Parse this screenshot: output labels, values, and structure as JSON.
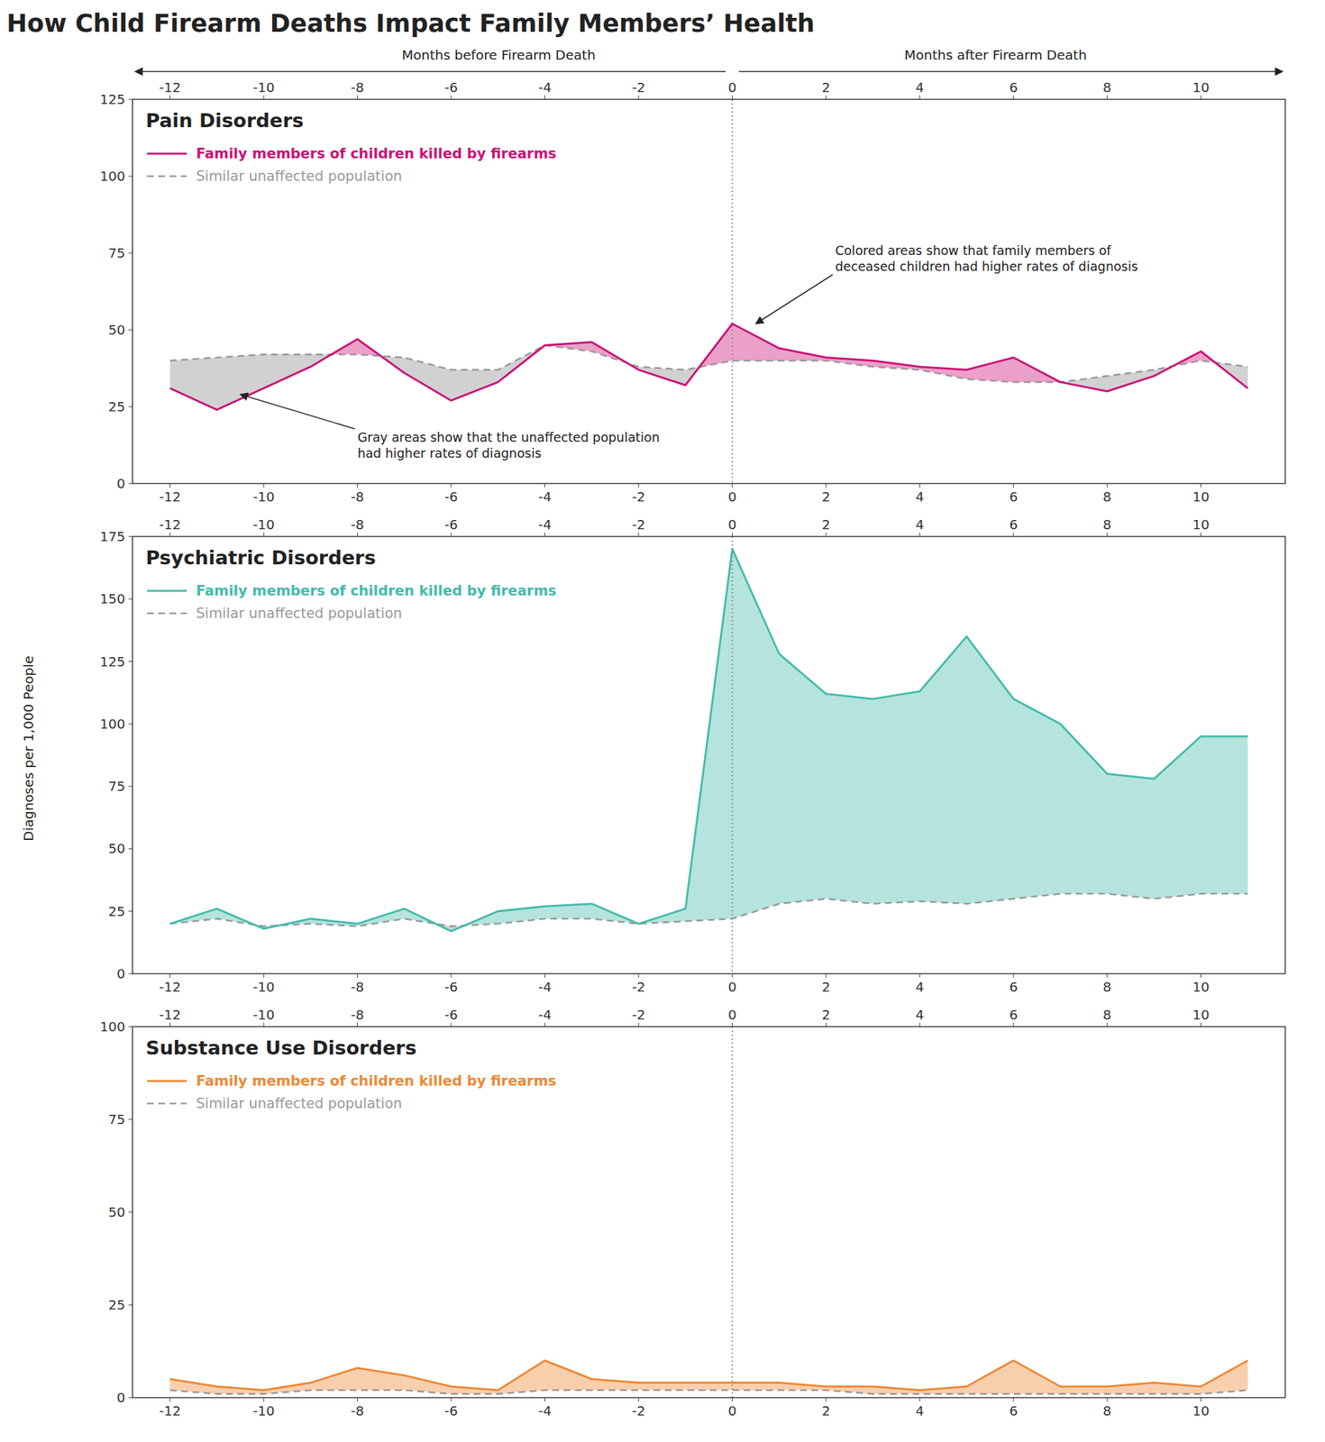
{
  "title": "How Child Firearm Deaths Impact Family Members’ Health",
  "y_label": "Diagnoses per 1,000 People",
  "x_label_before": "Months before Firearm Death",
  "x_label_after": "Months after Firearm Death",
  "chart_data": [
    {
      "type": "line",
      "title": "Pain Disorders",
      "x": [
        -12,
        -11,
        -10,
        -9,
        -8,
        -7,
        -6,
        -5,
        -4,
        -3,
        -2,
        -1,
        0,
        1,
        2,
        3,
        4,
        5,
        6,
        7,
        8,
        9,
        10,
        11
      ],
      "xlim": [
        -12.8,
        11.8
      ],
      "xticks": [
        -12,
        -10,
        -8,
        -6,
        -4,
        -2,
        0,
        2,
        4,
        6,
        8,
        10
      ],
      "ylim": [
        0,
        125
      ],
      "yticks": [
        0,
        25,
        50,
        75,
        100,
        125
      ],
      "vline": 0,
      "grid": false,
      "legend": "upper left",
      "series": [
        {
          "name": "Family members of children killed by firearms",
          "color": "#CC1177",
          "line_style": "solid",
          "values": [
            31,
            24,
            31,
            38,
            47,
            36,
            27,
            33,
            45,
            46,
            37,
            32,
            52,
            44,
            41,
            40,
            38,
            37,
            41,
            33,
            30,
            35,
            43,
            31
          ]
        },
        {
          "name": "Similar unaffected population",
          "color": "#999999",
          "line_style": "dashed",
          "values": [
            40,
            41,
            42,
            42,
            42,
            41,
            37,
            37,
            45,
            43,
            38,
            37,
            40,
            40,
            40,
            38,
            37,
            34,
            33,
            33,
            35,
            37,
            40,
            38
          ]
        }
      ],
      "annotations": [
        {
          "text": "Gray areas show that the unaffected population\nhad higher rates of diagnosis",
          "x": -10.5,
          "y": 29
        },
        {
          "text": "Colored areas show that family members of\ndeceased children had higher rates of diagnosis",
          "x": 0.5,
          "y": 52
        }
      ]
    },
    {
      "type": "line",
      "title": "Psychiatric Disorders",
      "x": [
        -12,
        -11,
        -10,
        -9,
        -8,
        -7,
        -6,
        -5,
        -4,
        -3,
        -2,
        -1,
        0,
        1,
        2,
        3,
        4,
        5,
        6,
        7,
        8,
        9,
        10,
        11
      ],
      "xlim": [
        -12.8,
        11.8
      ],
      "xticks": [
        -12,
        -10,
        -8,
        -6,
        -4,
        -2,
        0,
        2,
        4,
        6,
        8,
        10
      ],
      "ylim": [
        0,
        175
      ],
      "yticks": [
        0,
        25,
        50,
        75,
        100,
        125,
        150,
        175
      ],
      "vline": 0,
      "grid": false,
      "legend": "upper left",
      "series": [
        {
          "name": "Family members of children killed by firearms",
          "color": "#44BBAA",
          "line_style": "solid",
          "values": [
            20,
            26,
            18,
            22,
            20,
            26,
            17,
            25,
            27,
            28,
            20,
            26,
            170,
            128,
            112,
            110,
            113,
            135,
            110,
            100,
            80,
            78,
            95,
            95
          ]
        },
        {
          "name": "Similar unaffected population",
          "color": "#999999",
          "line_style": "dashed",
          "values": [
            20,
            22,
            19,
            20,
            19,
            22,
            19,
            20,
            22,
            22,
            20,
            21,
            22,
            28,
            30,
            28,
            29,
            28,
            30,
            32,
            32,
            30,
            32,
            32
          ]
        }
      ]
    },
    {
      "type": "line",
      "title": "Substance Use Disorders",
      "x": [
        -12,
        -11,
        -10,
        -9,
        -8,
        -7,
        -6,
        -5,
        -4,
        -3,
        -2,
        -1,
        0,
        1,
        2,
        3,
        4,
        5,
        6,
        7,
        8,
        9,
        10,
        11
      ],
      "xlim": [
        -12.8,
        11.8
      ],
      "xticks": [
        -12,
        -10,
        -8,
        -6,
        -4,
        -2,
        0,
        2,
        4,
        6,
        8,
        10
      ],
      "ylim": [
        0,
        100
      ],
      "yticks": [
        0,
        25,
        50,
        75,
        100
      ],
      "vline": 0,
      "grid": false,
      "legend": "upper left",
      "series": [
        {
          "name": "Family members of children killed by firearms",
          "color": "#EE8833",
          "line_style": "solid",
          "values": [
            5,
            3,
            2,
            4,
            8,
            6,
            3,
            2,
            10,
            5,
            4,
            4,
            4,
            4,
            3,
            3,
            2,
            3,
            10,
            3,
            3,
            4,
            3,
            10
          ]
        },
        {
          "name": "Similar unaffected population",
          "color": "#999999",
          "line_style": "dashed",
          "values": [
            2,
            1,
            1,
            2,
            2,
            2,
            1,
            1,
            2,
            2,
            2,
            2,
            2,
            2,
            2,
            1,
            1,
            1,
            1,
            1,
            1,
            1,
            1,
            2
          ]
        }
      ]
    }
  ]
}
